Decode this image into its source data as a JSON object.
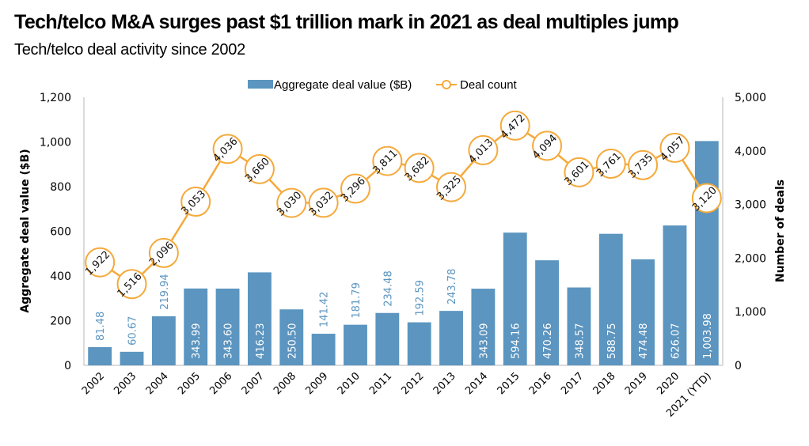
{
  "header": {
    "title": "Tech/telco M&A surges past $1 trillion mark in 2021 as deal multiples jump",
    "subtitle": "Tech/telco deal activity since 2002"
  },
  "chart_data": {
    "type": "bar",
    "title": "Tech/telco M&A surges past $1 trillion mark in 2021 as deal multiples jump",
    "subtitle": "Tech/telco deal activity since 2002",
    "categories": [
      "2002",
      "2003",
      "2004",
      "2005",
      "2006",
      "2007",
      "2008",
      "2009",
      "2010",
      "2011",
      "2012",
      "2013",
      "2014",
      "2015",
      "2016",
      "2017",
      "2018",
      "2019",
      "2020",
      "2021 (YTD)"
    ],
    "series": [
      {
        "name": "Aggregate deal value ($B)",
        "type": "bar",
        "axis": "left",
        "color": "#5b95c0",
        "values": [
          81.48,
          60.67,
          219.94,
          343.99,
          343.6,
          416.23,
          250.5,
          141.42,
          181.79,
          234.48,
          192.59,
          243.78,
          343.09,
          594.16,
          470.26,
          348.57,
          588.75,
          474.48,
          626.07,
          1003.98
        ],
        "labels": [
          "81.48",
          "60.67",
          "219.94",
          "343.99",
          "343.60",
          "416.23",
          "250.50",
          "141.42",
          "181.79",
          "234.48",
          "192.59",
          "243.78",
          "343.09",
          "594.16",
          "470.26",
          "348.57",
          "588.75",
          "474.48",
          "626.07",
          "1,003.98"
        ]
      },
      {
        "name": "Deal count",
        "type": "line",
        "axis": "right",
        "color": "#f5a93a",
        "values": [
          1922,
          1516,
          2096,
          3053,
          4036,
          3660,
          3030,
          3032,
          3296,
          3811,
          3682,
          3325,
          4013,
          4472,
          4094,
          3601,
          3761,
          3735,
          4057,
          3120
        ],
        "labels": [
          "1,922",
          "1,516",
          "2,096",
          "3,053",
          "4,036",
          "3,660",
          "3,030",
          "3,032",
          "3,296",
          "3,811",
          "3,682",
          "3,325",
          "4,013",
          "4,472",
          "4,094",
          "3,601",
          "3,761",
          "3,735",
          "4,057",
          "3,120"
        ]
      }
    ],
    "xlabel": "",
    "ylabel": "Aggregate deal value ($B)",
    "y2label": "Number of deals",
    "ylim": [
      0,
      1200
    ],
    "y2lim": [
      0,
      5000
    ],
    "yticks": [
      0,
      200,
      400,
      600,
      800,
      1000,
      1200
    ],
    "ytick_labels": [
      "0",
      "200",
      "400",
      "600",
      "800",
      "1,000",
      "1,200"
    ],
    "y2ticks": [
      0,
      1000,
      2000,
      3000,
      4000,
      5000
    ],
    "y2tick_labels": [
      "0",
      "1,000",
      "2,000",
      "3,000",
      "4,000",
      "5,000"
    ],
    "legend": {
      "position": "top-center",
      "entries": [
        "Aggregate deal value ($B)",
        "Deal count"
      ]
    },
    "grid": false,
    "label_inside_threshold": 250
  }
}
